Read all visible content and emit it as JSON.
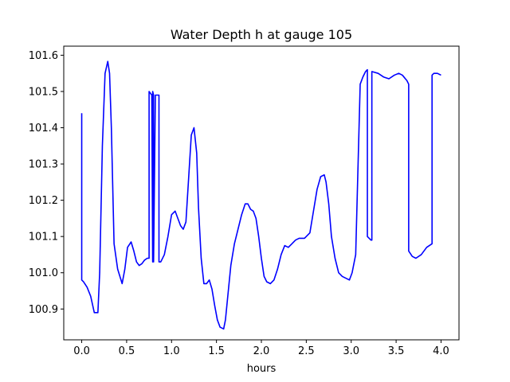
{
  "chart_data": {
    "type": "line",
    "title": "Water Depth h at gauge 105",
    "xlabel": "hours",
    "ylabel": "",
    "xlim": [
      -0.2,
      4.2
    ],
    "ylim": [
      100.815,
      101.625
    ],
    "x_ticks": [
      0.0,
      0.5,
      1.0,
      1.5,
      2.0,
      2.5,
      3.0,
      3.5,
      4.0
    ],
    "x_tick_labels": [
      "0.0",
      "0.5",
      "1.0",
      "1.5",
      "2.0",
      "2.5",
      "3.0",
      "3.5",
      "4.0"
    ],
    "y_ticks": [
      100.9,
      101.0,
      101.1,
      101.2,
      101.3,
      101.4,
      101.5,
      101.6
    ],
    "y_tick_labels": [
      "100.9",
      "101.0",
      "101.1",
      "101.2",
      "101.3",
      "101.4",
      "101.5",
      "101.6"
    ],
    "grid": false,
    "series": [
      {
        "name": "",
        "color": "#0000ff",
        "x": [
          0.0,
          0.0,
          0.02,
          0.06,
          0.1,
          0.14,
          0.18,
          0.2,
          0.23,
          0.26,
          0.29,
          0.31,
          0.33,
          0.36,
          0.4,
          0.45,
          0.48,
          0.51,
          0.55,
          0.58,
          0.61,
          0.64,
          0.67,
          0.7,
          0.73,
          0.75,
          0.75,
          0.78,
          0.79,
          0.79,
          0.8,
          0.8,
          0.82,
          0.86,
          0.86,
          0.88,
          0.92,
          0.96,
          1.0,
          1.04,
          1.07,
          1.1,
          1.13,
          1.16,
          1.19,
          1.22,
          1.25,
          1.28,
          1.3,
          1.33,
          1.36,
          1.39,
          1.42,
          1.45,
          1.48,
          1.51,
          1.54,
          1.58,
          1.6,
          1.62,
          1.66,
          1.7,
          1.74,
          1.78,
          1.82,
          1.85,
          1.88,
          1.91,
          1.94,
          1.97,
          2.0,
          2.03,
          2.06,
          2.1,
          2.14,
          2.18,
          2.22,
          2.26,
          2.3,
          2.34,
          2.38,
          2.42,
          2.48,
          2.54,
          2.58,
          2.62,
          2.66,
          2.7,
          2.72,
          2.75,
          2.78,
          2.82,
          2.86,
          2.9,
          2.94,
          2.98,
          3.01,
          3.05,
          3.1,
          3.1,
          3.13,
          3.16,
          3.18,
          3.18,
          3.22,
          3.23,
          3.23,
          3.3,
          3.36,
          3.42,
          3.48,
          3.53,
          3.57,
          3.62,
          3.64,
          3.64,
          3.68,
          3.72,
          3.78,
          3.84,
          3.9,
          3.9,
          3.92,
          3.96,
          4.0
        ],
        "values": [
          101.44,
          100.98,
          100.975,
          100.96,
          100.935,
          100.89,
          100.89,
          101.0,
          101.35,
          101.55,
          101.583,
          101.55,
          101.4,
          101.08,
          101.01,
          100.97,
          101.01,
          101.07,
          101.085,
          101.06,
          101.03,
          101.02,
          101.025,
          101.035,
          101.04,
          101.04,
          101.5,
          101.49,
          101.03,
          101.5,
          101.49,
          101.03,
          101.49,
          101.49,
          101.03,
          101.03,
          101.05,
          101.1,
          101.16,
          101.17,
          101.15,
          101.13,
          101.12,
          101.14,
          101.26,
          101.38,
          101.4,
          101.33,
          101.18,
          101.04,
          100.97,
          100.97,
          100.98,
          100.955,
          100.91,
          100.87,
          100.85,
          100.845,
          100.87,
          100.92,
          101.02,
          101.08,
          101.12,
          101.16,
          101.19,
          101.19,
          101.175,
          101.17,
          101.15,
          101.1,
          101.04,
          100.99,
          100.975,
          100.97,
          100.98,
          101.01,
          101.05,
          101.075,
          101.07,
          101.08,
          101.09,
          101.095,
          101.095,
          101.11,
          101.17,
          101.23,
          101.265,
          101.27,
          101.25,
          101.19,
          101.1,
          101.04,
          101.0,
          100.99,
          100.985,
          100.98,
          101.0,
          101.05,
          101.52,
          101.52,
          101.54,
          101.555,
          101.56,
          101.1,
          101.09,
          101.09,
          101.555,
          101.55,
          101.54,
          101.535,
          101.545,
          101.55,
          101.545,
          101.53,
          101.52,
          101.06,
          101.045,
          101.04,
          101.05,
          101.07,
          101.08,
          101.545,
          101.55,
          101.55,
          101.545
        ]
      }
    ]
  }
}
